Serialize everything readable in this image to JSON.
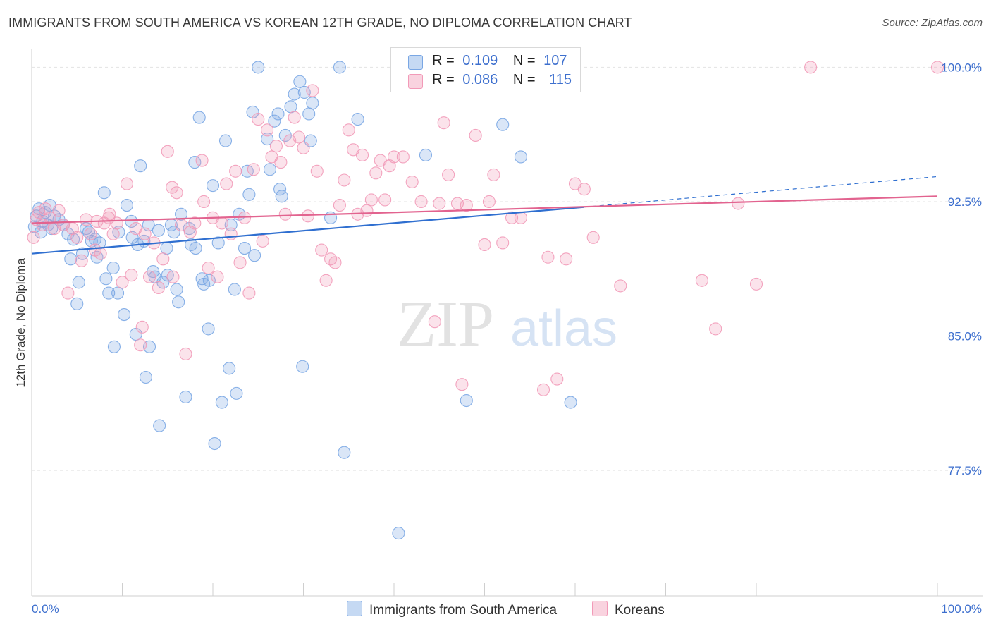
{
  "title": "IMMIGRANTS FROM SOUTH AMERICA VS KOREAN 12TH GRADE, NO DIPLOMA CORRELATION CHART",
  "source": "Source: ZipAtlas.com",
  "watermark": {
    "zip": "ZIP",
    "atlas": "atlas"
  },
  "legend": {
    "rows": [
      {
        "r_label": "R =",
        "r_value": "0.109",
        "n_label": "N =",
        "n_value": "107",
        "color": "#a9c6ee"
      },
      {
        "r_label": "R =",
        "r_value": "0.086",
        "n_label": "N =",
        "n_value": "115",
        "color": "#f5b9cc"
      }
    ]
  },
  "chart_data": {
    "type": "scatter",
    "xlabel": "",
    "ylabel": "12th Grade, No Diploma",
    "xlim": [
      0,
      100
    ],
    "ylim": [
      70.5,
      101
    ],
    "x_tick_labels": [
      "0.0%",
      "100.0%"
    ],
    "y_ticks": [
      77.5,
      85.0,
      92.5,
      100.0
    ],
    "y_tick_labels": [
      "77.5%",
      "85.0%",
      "92.5%",
      "100.0%"
    ],
    "grid": true,
    "legend_position": "top-center",
    "series": [
      {
        "name": "Immigrants from South America",
        "color": "#7aa7e4",
        "line_color": "#2f6fd0",
        "trend": {
          "x": [
            0,
            61
          ],
          "y": [
            89.6,
            92.2
          ],
          "dashed_to": [
            100,
            93.9
          ]
        },
        "points": [
          [
            0.3,
            91.1
          ],
          [
            0.5,
            91.7
          ],
          [
            0.8,
            92.1
          ],
          [
            1,
            90.8
          ],
          [
            1.2,
            91.4
          ],
          [
            1.5,
            91.9
          ],
          [
            1.8,
            91.2
          ],
          [
            2,
            92.3
          ],
          [
            2.2,
            91.0
          ],
          [
            2.5,
            91.7
          ],
          [
            3,
            91.5
          ],
          [
            3.5,
            91.2
          ],
          [
            4,
            90.7
          ],
          [
            4.3,
            89.3
          ],
          [
            4.6,
            90.4
          ],
          [
            5,
            86.8
          ],
          [
            5.2,
            88.0
          ],
          [
            5.6,
            89.6
          ],
          [
            6,
            91.0
          ],
          [
            6.3,
            90.8
          ],
          [
            6.6,
            90.3
          ],
          [
            7,
            90.4
          ],
          [
            7.2,
            89.4
          ],
          [
            7.5,
            90.2
          ],
          [
            8,
            93.0
          ],
          [
            8.2,
            88.2
          ],
          [
            8.5,
            87.4
          ],
          [
            9,
            88.8
          ],
          [
            9.1,
            84.4
          ],
          [
            9.5,
            87.4
          ],
          [
            9.6,
            90.8
          ],
          [
            10.2,
            86.2
          ],
          [
            10.5,
            92.3
          ],
          [
            11,
            91.4
          ],
          [
            11.1,
            90.5
          ],
          [
            11.5,
            85.1
          ],
          [
            11.7,
            90.1
          ],
          [
            12,
            94.5
          ],
          [
            12.4,
            90.3
          ],
          [
            12.6,
            82.7
          ],
          [
            12.9,
            91.2
          ],
          [
            13,
            84.4
          ],
          [
            13.4,
            88.6
          ],
          [
            13.6,
            88.3
          ],
          [
            14,
            90.9
          ],
          [
            14.1,
            80.0
          ],
          [
            14.5,
            88.0
          ],
          [
            14.9,
            89.9
          ],
          [
            15,
            88.4
          ],
          [
            15.4,
            91.2
          ],
          [
            15.7,
            90.8
          ],
          [
            16,
            87.6
          ],
          [
            16.2,
            86.9
          ],
          [
            16.5,
            91.8
          ],
          [
            17,
            81.6
          ],
          [
            17.4,
            91.0
          ],
          [
            17.6,
            90.1
          ],
          [
            18,
            94.7
          ],
          [
            18.1,
            89.9
          ],
          [
            18.5,
            97.2
          ],
          [
            18.8,
            88.2
          ],
          [
            19,
            87.9
          ],
          [
            19.5,
            85.4
          ],
          [
            19.6,
            88.1
          ],
          [
            20,
            93.4
          ],
          [
            20.2,
            79.0
          ],
          [
            20.6,
            90.2
          ],
          [
            21,
            81.3
          ],
          [
            21.4,
            95.9
          ],
          [
            21.8,
            83.2
          ],
          [
            22,
            91.2
          ],
          [
            22.4,
            87.6
          ],
          [
            22.6,
            81.8
          ],
          [
            22.9,
            91.8
          ],
          [
            23.5,
            89.9
          ],
          [
            23.8,
            94.2
          ],
          [
            24,
            92.9
          ],
          [
            24.4,
            97.5
          ],
          [
            24.6,
            89.5
          ],
          [
            25,
            100.0
          ],
          [
            26,
            96.0
          ],
          [
            26.3,
            94.3
          ],
          [
            26.8,
            97.0
          ],
          [
            27.2,
            97.4
          ],
          [
            27.4,
            93.2
          ],
          [
            27.6,
            92.8
          ],
          [
            28,
            96.2
          ],
          [
            28.6,
            97.8
          ],
          [
            29,
            98.5
          ],
          [
            29.6,
            99.2
          ],
          [
            29.9,
            83.3
          ],
          [
            30.1,
            98.6
          ],
          [
            30.6,
            97.4
          ],
          [
            30.8,
            95.9
          ],
          [
            31,
            98.0
          ],
          [
            33,
            91.6
          ],
          [
            34,
            100.0
          ],
          [
            34.5,
            78.5
          ],
          [
            36,
            97.1
          ],
          [
            40.5,
            74.0
          ],
          [
            43.5,
            95.1
          ],
          [
            48,
            81.4
          ],
          [
            52,
            96.8
          ],
          [
            54,
            95.0
          ],
          [
            59.5,
            81.3
          ]
        ]
      },
      {
        "name": "Koreans",
        "color": "#f29ab8",
        "line_color": "#e2638f",
        "trend": {
          "x": [
            0,
            100
          ],
          "y": [
            91.3,
            92.8
          ]
        },
        "points": [
          [
            0.2,
            90.5
          ],
          [
            0.5,
            91.5
          ],
          [
            0.8,
            91.9
          ],
          [
            1.2,
            91.2
          ],
          [
            1.5,
            92.1
          ],
          [
            2,
            91.6
          ],
          [
            2.5,
            91.0
          ],
          [
            3,
            92.0
          ],
          [
            3.5,
            91.2
          ],
          [
            4,
            87.4
          ],
          [
            4.5,
            91.0
          ],
          [
            5,
            90.5
          ],
          [
            5.5,
            89.2
          ],
          [
            6,
            91.5
          ],
          [
            6.5,
            90.7
          ],
          [
            7,
            89.8
          ],
          [
            7.2,
            91.4
          ],
          [
            7.6,
            89.6
          ],
          [
            8,
            91.3
          ],
          [
            8.5,
            91.6
          ],
          [
            8.6,
            91.8
          ],
          [
            9,
            90.7
          ],
          [
            9.4,
            91.3
          ],
          [
            10,
            88.0
          ],
          [
            10.5,
            93.5
          ],
          [
            11,
            88.4
          ],
          [
            11.5,
            91.0
          ],
          [
            12,
            84.5
          ],
          [
            12.2,
            85.5
          ],
          [
            12.5,
            90.7
          ],
          [
            13,
            88.3
          ],
          [
            13.5,
            90.2
          ],
          [
            14,
            87.7
          ],
          [
            14.5,
            89.3
          ],
          [
            15,
            95.3
          ],
          [
            15.5,
            93.3
          ],
          [
            15.6,
            88.3
          ],
          [
            16,
            93.0
          ],
          [
            16.5,
            91.2
          ],
          [
            17,
            84.0
          ],
          [
            17.5,
            90.8
          ],
          [
            18,
            91.3
          ],
          [
            18.8,
            94.8
          ],
          [
            19,
            92.5
          ],
          [
            19.5,
            88.8
          ],
          [
            20,
            91.6
          ],
          [
            20.5,
            88.3
          ],
          [
            21,
            91.3
          ],
          [
            21.5,
            93.5
          ],
          [
            22,
            90.7
          ],
          [
            22.5,
            94.2
          ],
          [
            23,
            89.1
          ],
          [
            23.5,
            91.6
          ],
          [
            24,
            87.4
          ],
          [
            24.5,
            94.3
          ],
          [
            25,
            97.1
          ],
          [
            25.5,
            90.3
          ],
          [
            26,
            96.5
          ],
          [
            26.5,
            95.0
          ],
          [
            27,
            95.6
          ],
          [
            27.5,
            94.7
          ],
          [
            28,
            91.8
          ],
          [
            28.5,
            95.9
          ],
          [
            29,
            97.2
          ],
          [
            29.5,
            96.1
          ],
          [
            30,
            95.5
          ],
          [
            30.5,
            91.7
          ],
          [
            31,
            98.7
          ],
          [
            31.5,
            94.2
          ],
          [
            32,
            89.8
          ],
          [
            32.5,
            88.1
          ],
          [
            33,
            89.3
          ],
          [
            33.5,
            89.1
          ],
          [
            34,
            92.3
          ],
          [
            34.5,
            93.7
          ],
          [
            35,
            96.5
          ],
          [
            35.5,
            95.4
          ],
          [
            36,
            91.8
          ],
          [
            36.5,
            95.1
          ],
          [
            37,
            92.0
          ],
          [
            37.5,
            92.6
          ],
          [
            38,
            94.1
          ],
          [
            38.5,
            94.8
          ],
          [
            39,
            92.6
          ],
          [
            39.5,
            94.5
          ],
          [
            40,
            95.0
          ],
          [
            41,
            95.0
          ],
          [
            42,
            93.6
          ],
          [
            43,
            92.5
          ],
          [
            44.5,
            85.8
          ],
          [
            45,
            92.4
          ],
          [
            45.5,
            96.9
          ],
          [
            46,
            94.0
          ],
          [
            47,
            92.4
          ],
          [
            47.5,
            82.3
          ],
          [
            48,
            92.3
          ],
          [
            49,
            96.2
          ],
          [
            50,
            90.1
          ],
          [
            50.5,
            92.5
          ],
          [
            51,
            94.0
          ],
          [
            52,
            90.2
          ],
          [
            53,
            91.6
          ],
          [
            54,
            91.6
          ],
          [
            56.5,
            82.0
          ],
          [
            57,
            89.4
          ],
          [
            58,
            82.6
          ],
          [
            59,
            89.3
          ],
          [
            60,
            93.5
          ],
          [
            61,
            93.2
          ],
          [
            62,
            90.5
          ],
          [
            65,
            87.8
          ],
          [
            74,
            88.1
          ],
          [
            75.5,
            85.4
          ],
          [
            78,
            92.4
          ],
          [
            80,
            87.9
          ],
          [
            86,
            100.0
          ],
          [
            100,
            100.0
          ]
        ]
      }
    ]
  }
}
